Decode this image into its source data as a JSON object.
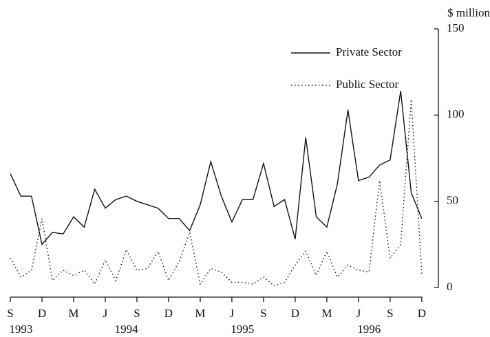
{
  "chart_data": {
    "type": "line",
    "y_label": "$ million",
    "categories": [
      "S",
      null,
      null,
      "D",
      null,
      null,
      "M",
      null,
      null,
      "J",
      null,
      null,
      "S",
      null,
      null,
      "D",
      null,
      null,
      "M",
      null,
      null,
      "J",
      null,
      null,
      "S",
      null,
      null,
      "D",
      null,
      null,
      "M",
      null,
      null,
      "J",
      null,
      null,
      "S",
      null,
      null,
      "D"
    ],
    "years": [
      null,
      "1993",
      null,
      null,
      null,
      null,
      null,
      null,
      null,
      null,
      null,
      "1994",
      null,
      null,
      null,
      null,
      null,
      null,
      null,
      null,
      null,
      null,
      "1995",
      null,
      null,
      null,
      null,
      null,
      null,
      null,
      null,
      null,
      null,
      null,
      "1996",
      null,
      null,
      null,
      null,
      null
    ],
    "series": [
      {
        "name": "Private Sector",
        "color": "#111111",
        "style": "solid",
        "values": [
          66,
          53,
          53,
          25,
          32,
          31,
          41,
          35,
          57,
          46,
          51,
          53,
          50,
          48,
          46,
          40,
          40,
          33,
          48,
          73,
          53,
          38,
          51,
          51,
          72,
          47,
          51,
          28,
          87,
          41,
          35,
          60,
          103,
          62,
          64,
          71,
          74,
          114,
          55,
          40
        ]
      },
      {
        "name": "Public Sector",
        "color": "#111111",
        "style": "dotted",
        "values": [
          17,
          6,
          10,
          40,
          4,
          10,
          7,
          10,
          2,
          16,
          4,
          22,
          10,
          11,
          21,
          4,
          15,
          32,
          2,
          11,
          9,
          3,
          3,
          2,
          6,
          1,
          3,
          13,
          21,
          7,
          21,
          6,
          13,
          10,
          9,
          62,
          17,
          25,
          109,
          8
        ]
      }
    ],
    "ylim": [
      0,
      150
    ],
    "yticks": [
      0,
      50,
      100,
      150
    ],
    "y_axis_side": "right",
    "legend": "top-right",
    "grid": false
  }
}
